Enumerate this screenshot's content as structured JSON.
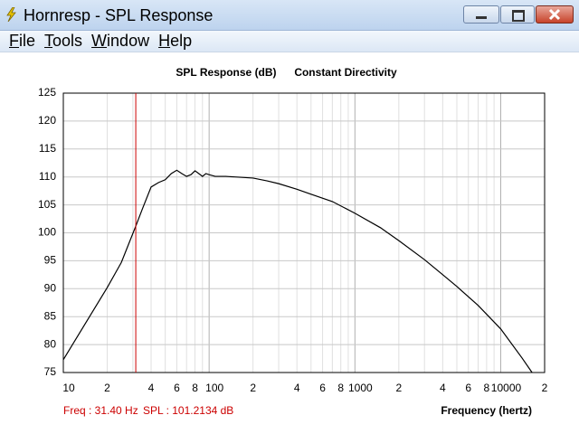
{
  "window": {
    "title": "Hornresp - SPL Response",
    "menu": [
      "File",
      "Tools",
      "Window",
      "Help"
    ]
  },
  "chart_data": {
    "type": "line",
    "title": "SPL Response (dB)",
    "subtitle": "Constant Directivity",
    "x_label": "Frequency (hertz)",
    "log_x": true,
    "grid": true,
    "color": "#000000",
    "x": [
      10,
      20,
      25,
      31.4,
      35,
      40,
      45,
      50,
      55,
      60,
      65,
      70,
      75,
      80,
      85,
      90,
      95,
      100,
      110,
      130,
      150,
      200,
      250,
      300,
      400,
      500,
      700,
      1000,
      1500,
      2000,
      3000,
      4000,
      5000,
      7000,
      10000,
      14000,
      16400
    ],
    "values": [
      77.3,
      90.2,
      94.7,
      101.2,
      104.4,
      108.2,
      109.0,
      109.5,
      110.6,
      111.2,
      110.6,
      110.1,
      110.4,
      111.1,
      110.6,
      110.1,
      110.6,
      110.4,
      110.1,
      110.1,
      110.0,
      109.8,
      109.3,
      108.8,
      107.8,
      106.9,
      105.6,
      103.5,
      100.9,
      98.6,
      95.2,
      92.5,
      90.4,
      87.0,
      82.8,
      77.6,
      75.0
    ],
    "xlim": [
      10,
      20000
    ],
    "ylim": [
      75,
      125
    ],
    "xticks": [
      10,
      {
        "value": 20,
        "label": "2"
      },
      {
        "value": 40,
        "label": "4"
      },
      {
        "value": 60,
        "label": "6"
      },
      {
        "value": 80,
        "label": "8"
      },
      100,
      {
        "value": 200,
        "label": "2"
      },
      {
        "value": 400,
        "label": "4"
      },
      {
        "value": 600,
        "label": "6"
      },
      {
        "value": 800,
        "label": "8"
      },
      1000,
      {
        "value": 2000,
        "label": "2"
      },
      {
        "value": 4000,
        "label": "4"
      },
      {
        "value": 6000,
        "label": "6"
      },
      {
        "value": 8000,
        "label": "8"
      },
      10000,
      {
        "value": 20000,
        "label": "2"
      }
    ],
    "xminor": [
      30,
      50,
      70,
      90,
      300,
      500,
      700,
      900,
      3000,
      5000,
      7000,
      9000
    ],
    "yticks": [
      75,
      80,
      85,
      90,
      95,
      100,
      105,
      110,
      115,
      120,
      125
    ],
    "cursor": {
      "x": 31.4,
      "color": "#cc0000",
      "freq_label": "Freq : 31.40 Hz",
      "spl_label": "SPL : 101.2134 dB"
    }
  }
}
